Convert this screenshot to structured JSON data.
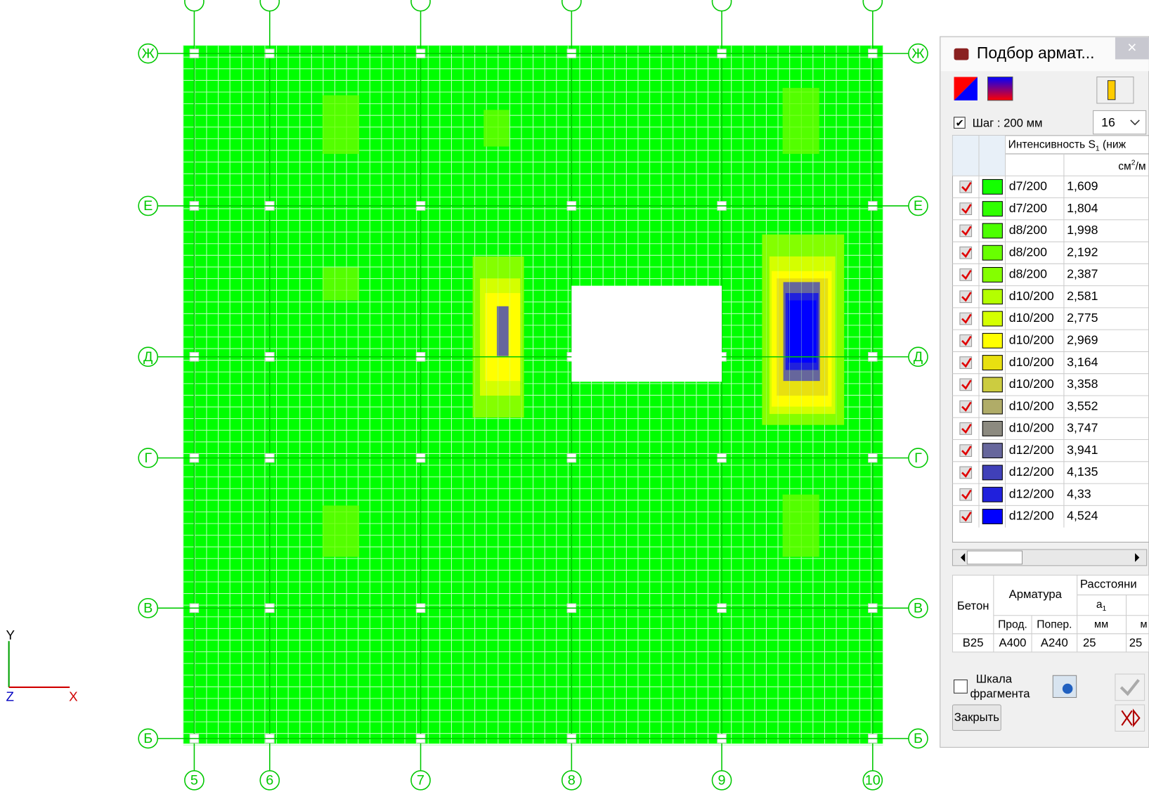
{
  "window": {
    "title": "Подбор армат...",
    "close": "×"
  },
  "toolbar": {
    "step_checkbox": "Шаг : 200 мм",
    "count": "16"
  },
  "legend": {
    "header": "Интенсивность S",
    "header_sub": "1",
    "header_tail": " (ниж",
    "unit": "см",
    "unit_sup": "2",
    "unit_tail": "/м",
    "rows": [
      {
        "label": "d7/200",
        "value": "1,609",
        "color": "#14ff00"
      },
      {
        "label": "d7/200",
        "value": "1,804",
        "color": "#30ff00"
      },
      {
        "label": "d8/200",
        "value": "1,998",
        "color": "#4cff00"
      },
      {
        "label": "d8/200",
        "value": "2,192",
        "color": "#68ff00"
      },
      {
        "label": "d8/200",
        "value": "2,387",
        "color": "#84ff00"
      },
      {
        "label": "d10/200",
        "value": "2,581",
        "color": "#b4ff00"
      },
      {
        "label": "d10/200",
        "value": "2,775",
        "color": "#d4ff00"
      },
      {
        "label": "d10/200",
        "value": "2,969",
        "color": "#ffff00"
      },
      {
        "label": "d10/200",
        "value": "3,164",
        "color": "#e8e010"
      },
      {
        "label": "d10/200",
        "value": "3,358",
        "color": "#cccc40"
      },
      {
        "label": "d10/200",
        "value": "3,552",
        "color": "#b0ac68"
      },
      {
        "label": "d10/200",
        "value": "3,747",
        "color": "#8c8a80"
      },
      {
        "label": "d12/200",
        "value": "3,941",
        "color": "#66669c"
      },
      {
        "label": "d12/200",
        "value": "4,135",
        "color": "#4040b8"
      },
      {
        "label": "d12/200",
        "value": "4,33",
        "color": "#2020dc"
      },
      {
        "label": "d12/200",
        "value": "4,524",
        "color": "#0000ff"
      }
    ]
  },
  "materials": {
    "concrete": "Бетон",
    "rebar": "Арматура",
    "distance": "Расстояни",
    "a": "а",
    "a_sub": "1",
    "long": "Прод.",
    "trans": "Попер.",
    "unit_a1": "мм",
    "unit_a2": "м",
    "row": [
      "B25",
      "A400",
      "A240",
      "25",
      "25"
    ]
  },
  "scale_checkbox": "Шкала\nфрагмента",
  "close_button": "Закрыть",
  "grid_axes": {
    "columns": [
      "5",
      "6",
      "7",
      "8",
      "9",
      "10"
    ],
    "rows": [
      "Ж",
      "Е",
      "Д",
      "Г",
      "В",
      "Б"
    ]
  },
  "triad": {
    "y": "Y",
    "z": "Z",
    "x": "X"
  }
}
